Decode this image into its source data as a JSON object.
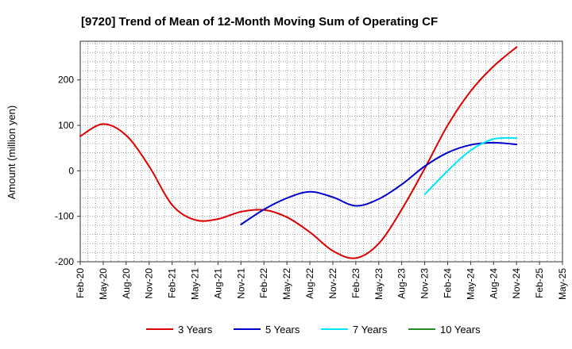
{
  "chart_data": {
    "type": "line",
    "title": "[9720]  Trend of Mean of 12-Month Moving Sum of Operating CF",
    "xlabel": "",
    "ylabel": "Amount (million yen)",
    "x_tick_labels": [
      "Feb-20",
      "May-20",
      "Aug-20",
      "Nov-20",
      "Feb-21",
      "May-21",
      "Aug-21",
      "Nov-21",
      "Feb-22",
      "May-22",
      "Aug-22",
      "Nov-22",
      "Feb-23",
      "May-23",
      "Aug-23",
      "Nov-23",
      "Feb-24",
      "May-24",
      "Aug-24",
      "Nov-24",
      "Feb-25",
      "May-25"
    ],
    "y_ticks": [
      -200,
      -100,
      0,
      100,
      200
    ],
    "ylim": [
      -200,
      285
    ],
    "grid": true,
    "legend_position": "bottom",
    "series": [
      {
        "name": "3 Years",
        "color": "#dd0000",
        "points": [
          [
            "Feb-20",
            76
          ],
          [
            "May-20",
            103
          ],
          [
            "Aug-20",
            78
          ],
          [
            "Nov-20",
            10
          ],
          [
            "Feb-21",
            -75
          ],
          [
            "May-21",
            -108
          ],
          [
            "Aug-21",
            -106
          ],
          [
            "Nov-21",
            -90
          ],
          [
            "Feb-22",
            -86
          ],
          [
            "May-22",
            -102
          ],
          [
            "Aug-22",
            -135
          ],
          [
            "Nov-22",
            -176
          ],
          [
            "Feb-23",
            -192
          ],
          [
            "May-23",
            -160
          ],
          [
            "Aug-23",
            -85
          ],
          [
            "Nov-23",
            5
          ],
          [
            "Feb-24",
            100
          ],
          [
            "May-24",
            175
          ],
          [
            "Aug-24",
            230
          ],
          [
            "Nov-24",
            272
          ]
        ]
      },
      {
        "name": "5 Years",
        "color": "#0000cc",
        "points": [
          [
            "Nov-21",
            -118
          ],
          [
            "Feb-22",
            -85
          ],
          [
            "May-22",
            -60
          ],
          [
            "Aug-22",
            -46
          ],
          [
            "Nov-22",
            -58
          ],
          [
            "Feb-23",
            -77
          ],
          [
            "May-23",
            -62
          ],
          [
            "Aug-23",
            -30
          ],
          [
            "Nov-23",
            10
          ],
          [
            "Feb-24",
            40
          ],
          [
            "May-24",
            57
          ],
          [
            "Aug-24",
            62
          ],
          [
            "Nov-24",
            58
          ]
        ]
      },
      {
        "name": "7 Years",
        "color": "#00e5ff",
        "points": [
          [
            "Nov-23",
            -52
          ],
          [
            "Feb-24",
            0
          ],
          [
            "May-24",
            45
          ],
          [
            "Aug-24",
            70
          ],
          [
            "Nov-24",
            72
          ]
        ]
      },
      {
        "name": "10 Years",
        "color": "#228b22",
        "points": []
      }
    ]
  }
}
